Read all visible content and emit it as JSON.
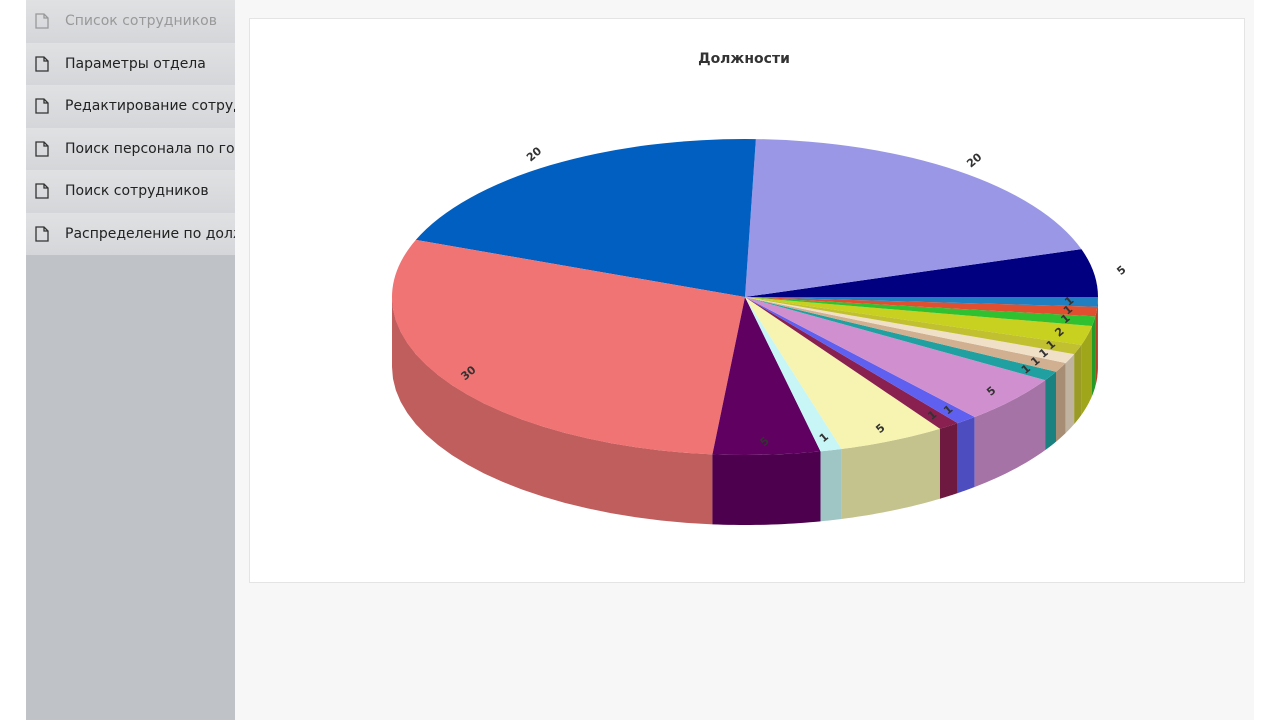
{
  "sidebar": {
    "items": [
      "Список сотрудников",
      "Параметры отдела",
      "Редактирование сотруд…",
      "Поиск персонала по го…",
      "Поиск сотрудников",
      "Распределение по долж…"
    ]
  },
  "chart_data": {
    "type": "pie",
    "title": "Должности",
    "values": [
      5,
      20,
      20,
      30,
      5,
      1,
      5,
      1,
      1,
      5,
      1,
      1,
      1,
      1,
      2,
      1,
      1,
      1
    ],
    "colors": [
      "#000080",
      "#9a98e6",
      "#005fc0",
      "#f07474",
      "#600060",
      "#c8f6f6",
      "#f6f4b0",
      "#8a2050",
      "#6060f0",
      "#d090d0",
      "#20a0a0",
      "#d0b090",
      "#f0e0c8",
      "#c0c030",
      "#c8d020",
      "#30c030",
      "#e05030",
      "#1f7fc0"
    ]
  }
}
